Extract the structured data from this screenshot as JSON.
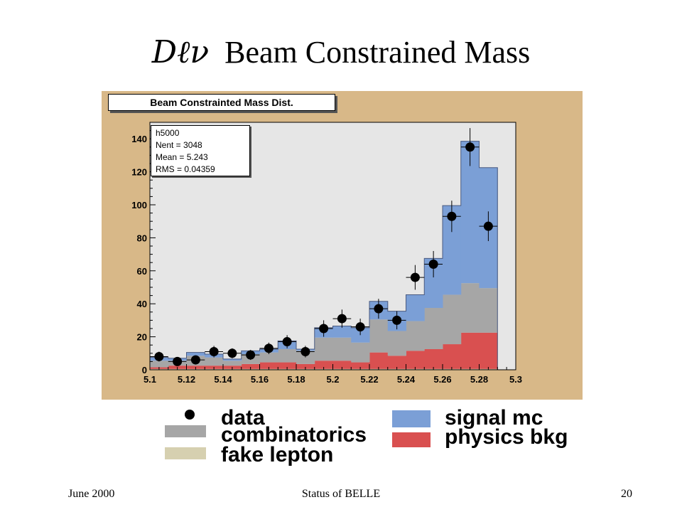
{
  "slide": {
    "title_symbol": "Dℓν",
    "title_text": "Beam Constrained Mass",
    "footer_left": "June 2000",
    "footer_center": "Status of BELLE",
    "footer_right": "20"
  },
  "colors": {
    "frame_bg": "#d8b888",
    "plot_bg": "#e6e6e6",
    "signal_mc": "#7b9fd6",
    "combinatorics": "#a6a6a6",
    "physics_bkg": "#d95050",
    "fake_lepton": "#d6d0b0",
    "data_marker": "#000000"
  },
  "chart_data": {
    "type": "bar",
    "title": "Beam Constrainted Mass Dist.",
    "stats": {
      "name": "h5000",
      "nent": "Nent = 3048",
      "mean": "Mean = 5.243",
      "rms": "RMS  = 0.04359"
    },
    "xlim": [
      5.1,
      5.3
    ],
    "ylim": [
      0,
      150
    ],
    "x_ticks": [
      "5.1",
      "5.12",
      "5.14",
      "5.16",
      "5.18",
      "5.2",
      "5.22",
      "5.24",
      "5.26",
      "5.28",
      "5.3"
    ],
    "y_ticks": [
      "0",
      "20",
      "40",
      "60",
      "80",
      "100",
      "120",
      "140"
    ],
    "bin_edges": [
      5.1,
      5.11,
      5.12,
      5.13,
      5.14,
      5.15,
      5.16,
      5.17,
      5.18,
      5.19,
      5.2,
      5.21,
      5.22,
      5.23,
      5.24,
      5.25,
      5.26,
      5.27,
      5.28,
      5.29
    ],
    "stack": [
      {
        "name": "fake lepton",
        "color_key": "fake_lepton",
        "values": [
          0.5,
          0.5,
          0.5,
          0.5,
          0.5,
          0.5,
          0.5,
          0.5,
          0.5,
          0.5,
          0.5,
          0.5,
          0.5,
          0.5,
          0.5,
          0.5,
          0.5,
          0.5,
          0.5
        ]
      },
      {
        "name": "physics bkg",
        "color_key": "physics_bkg",
        "values": [
          1,
          2,
          2,
          2,
          2,
          3,
          4,
          4,
          3,
          5,
          5,
          4,
          10,
          8,
          11,
          12,
          15,
          22,
          22
        ]
      },
      {
        "name": "combinatorics",
        "color_key": "combinatorics",
        "values": [
          4,
          3,
          6,
          5,
          3,
          6,
          6,
          8,
          8,
          14,
          14,
          12,
          20,
          15,
          18,
          25,
          30,
          30,
          27
        ]
      },
      {
        "name": "signal mc",
        "color_key": "signal_mc",
        "values": [
          2,
          1.5,
          2,
          2,
          1,
          2,
          2,
          5,
          1,
          6,
          7,
          9,
          11,
          12,
          16,
          30,
          54,
          86,
          73
        ]
      }
    ],
    "data_points": {
      "name": "data",
      "x": [
        5.105,
        5.115,
        5.125,
        5.135,
        5.145,
        5.155,
        5.165,
        5.175,
        5.185,
        5.195,
        5.205,
        5.215,
        5.225,
        5.235,
        5.245,
        5.255,
        5.265,
        5.275,
        5.285
      ],
      "y": [
        8,
        5,
        6,
        11,
        10,
        9,
        13,
        17,
        11,
        25,
        31,
        26,
        37,
        30,
        56,
        64,
        93,
        135,
        87
      ],
      "yerr": [
        3,
        2,
        2.5,
        3.5,
        3,
        3,
        3.5,
        4,
        3.5,
        5,
        5.5,
        5,
        6,
        5.5,
        7.5,
        8,
        9.5,
        11.5,
        9
      ]
    },
    "legend": [
      {
        "marker": "dot",
        "color_key": "data_marker",
        "label": "data"
      },
      {
        "marker": "box",
        "color_key": "combinatorics",
        "label": "combinatorics"
      },
      {
        "marker": "box",
        "color_key": "fake_lepton",
        "label": "fake lepton"
      },
      {
        "marker": "box",
        "color_key": "signal_mc",
        "label": "signal mc"
      },
      {
        "marker": "box",
        "color_key": "physics_bkg",
        "label": "physics bkg"
      }
    ],
    "legend_placement": "below"
  }
}
